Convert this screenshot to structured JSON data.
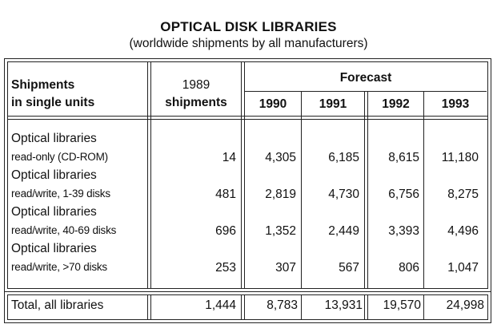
{
  "title": "OPTICAL DISK LIBRARIES",
  "subtitle": "(worldwide shipments by all manufacturers)",
  "header": {
    "row_label_line1": "Shipments",
    "row_label_line2": "in single units",
    "base_col_line1": "1989",
    "base_col_line2": "shipments",
    "forecast": "Forecast",
    "years": [
      "1990",
      "1991",
      "1992",
      "1993"
    ]
  },
  "rows": [
    {
      "line1": "Optical libraries",
      "line2": "read-only (CD-ROM)",
      "values": [
        "14",
        "4,305",
        "6,185",
        "8,615",
        "11,180"
      ]
    },
    {
      "line1": "Optical libraries",
      "line2": "read/write, 1-39 disks",
      "values": [
        "481",
        "2,819",
        "4,730",
        "6,756",
        "8,275"
      ]
    },
    {
      "line1": "Optical libraries",
      "line2": "read/write, 40-69 disks",
      "values": [
        "696",
        "1,352",
        "2,449",
        "3,393",
        "4,496"
      ]
    },
    {
      "line1": "Optical libraries",
      "line2": "read/write, >70 disks",
      "values": [
        "253",
        "307",
        "567",
        "806",
        "1,047"
      ]
    }
  ],
  "total": {
    "label": "Total, all libraries",
    "values": [
      "1,444",
      "8,783",
      "13,931",
      "19,570",
      "24,998"
    ]
  }
}
